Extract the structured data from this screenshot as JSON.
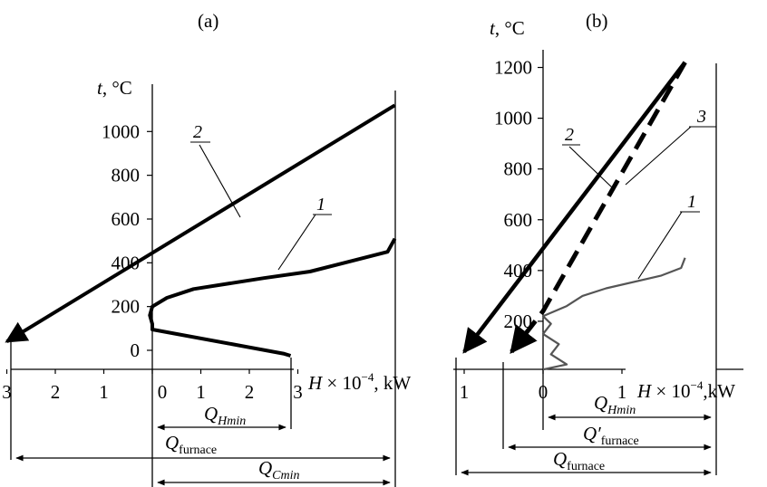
{
  "chart_data": [
    {
      "panel": "(a)",
      "type": "line",
      "ylabel": "t, °C",
      "xlabel": "H × 10^-4, kW",
      "y_ticks": [
        "0",
        "200",
        "400",
        "600",
        "800",
        "1000"
      ],
      "x_ticks": [
        "3",
        "2",
        "1",
        "0",
        "1",
        "2",
        "3"
      ],
      "ylim": [
        -40,
        1180
      ],
      "xlim": [
        -3,
        5
      ],
      "series": [
        {
          "name": "2",
          "style": "thick line with arrow",
          "x": [
            5,
            -3
          ],
          "y": [
            1120,
            40
          ]
        },
        {
          "name": "1",
          "style": "thick line",
          "x": [
            2.85,
            2.7,
            0.0,
            0.0,
            -0.05,
            0.0,
            0.3,
            0.85,
            2.3,
            3.25,
            4.85,
            5.0
          ],
          "y": [
            -25,
            -15,
            95,
            120,
            160,
            200,
            240,
            280,
            330,
            360,
            450,
            510
          ]
        }
      ],
      "spans": [
        {
          "label_base": "Q",
          "label_sub": "Hmin",
          "from": 0,
          "to": 2.85
        },
        {
          "label_base": "Q",
          "label_sub": "furnace",
          "from": -3,
          "to": 5
        },
        {
          "label_base": "Q",
          "label_sub": "Cmin",
          "from": 0,
          "to": 5
        }
      ]
    },
    {
      "panel": "(b)",
      "type": "line",
      "ylabel": "t, °C",
      "xlabel": "H × 10^-4,kW",
      "y_ticks": [
        "200",
        "400",
        "600",
        "800",
        "1000",
        "1200"
      ],
      "x_ticks": [
        "1",
        "0",
        "1"
      ],
      "ylim": [
        -10,
        1270
      ],
      "xlim": [
        -1.1,
        2.3
      ],
      "series": [
        {
          "name": "2",
          "style": "thick line with arrow",
          "x": [
            1.8,
            -1.0
          ],
          "y": [
            1220,
            80
          ]
        },
        {
          "name": "3",
          "style": "thick dashed line with arrow",
          "x": [
            1.8,
            0.0,
            -0.4
          ],
          "y": [
            1220,
            240,
            80
          ]
        },
        {
          "name": "1",
          "style": "thin gray line",
          "x": [
            0.0,
            0.3,
            0.1,
            0.2,
            0.0,
            0.1,
            0.0,
            0.3,
            0.5,
            0.8,
            1.5,
            1.75,
            1.8
          ],
          "y": [
            10,
            30,
            70,
            110,
            150,
            190,
            220,
            260,
            300,
            330,
            380,
            410,
            450
          ]
        }
      ],
      "spans": [
        {
          "label_base": "Q",
          "label_sub": "Hmin",
          "from": 0,
          "to": 1.8
        },
        {
          "label_base": "Q′",
          "label_sub": "furnace",
          "from": -0.4,
          "to": 1.8
        },
        {
          "label_base": "Q",
          "label_sub": "furnace",
          "from": -1.0,
          "to": 1.8
        }
      ]
    }
  ],
  "colors": {
    "ink": "#000000",
    "curve_b1": "#555555"
  }
}
